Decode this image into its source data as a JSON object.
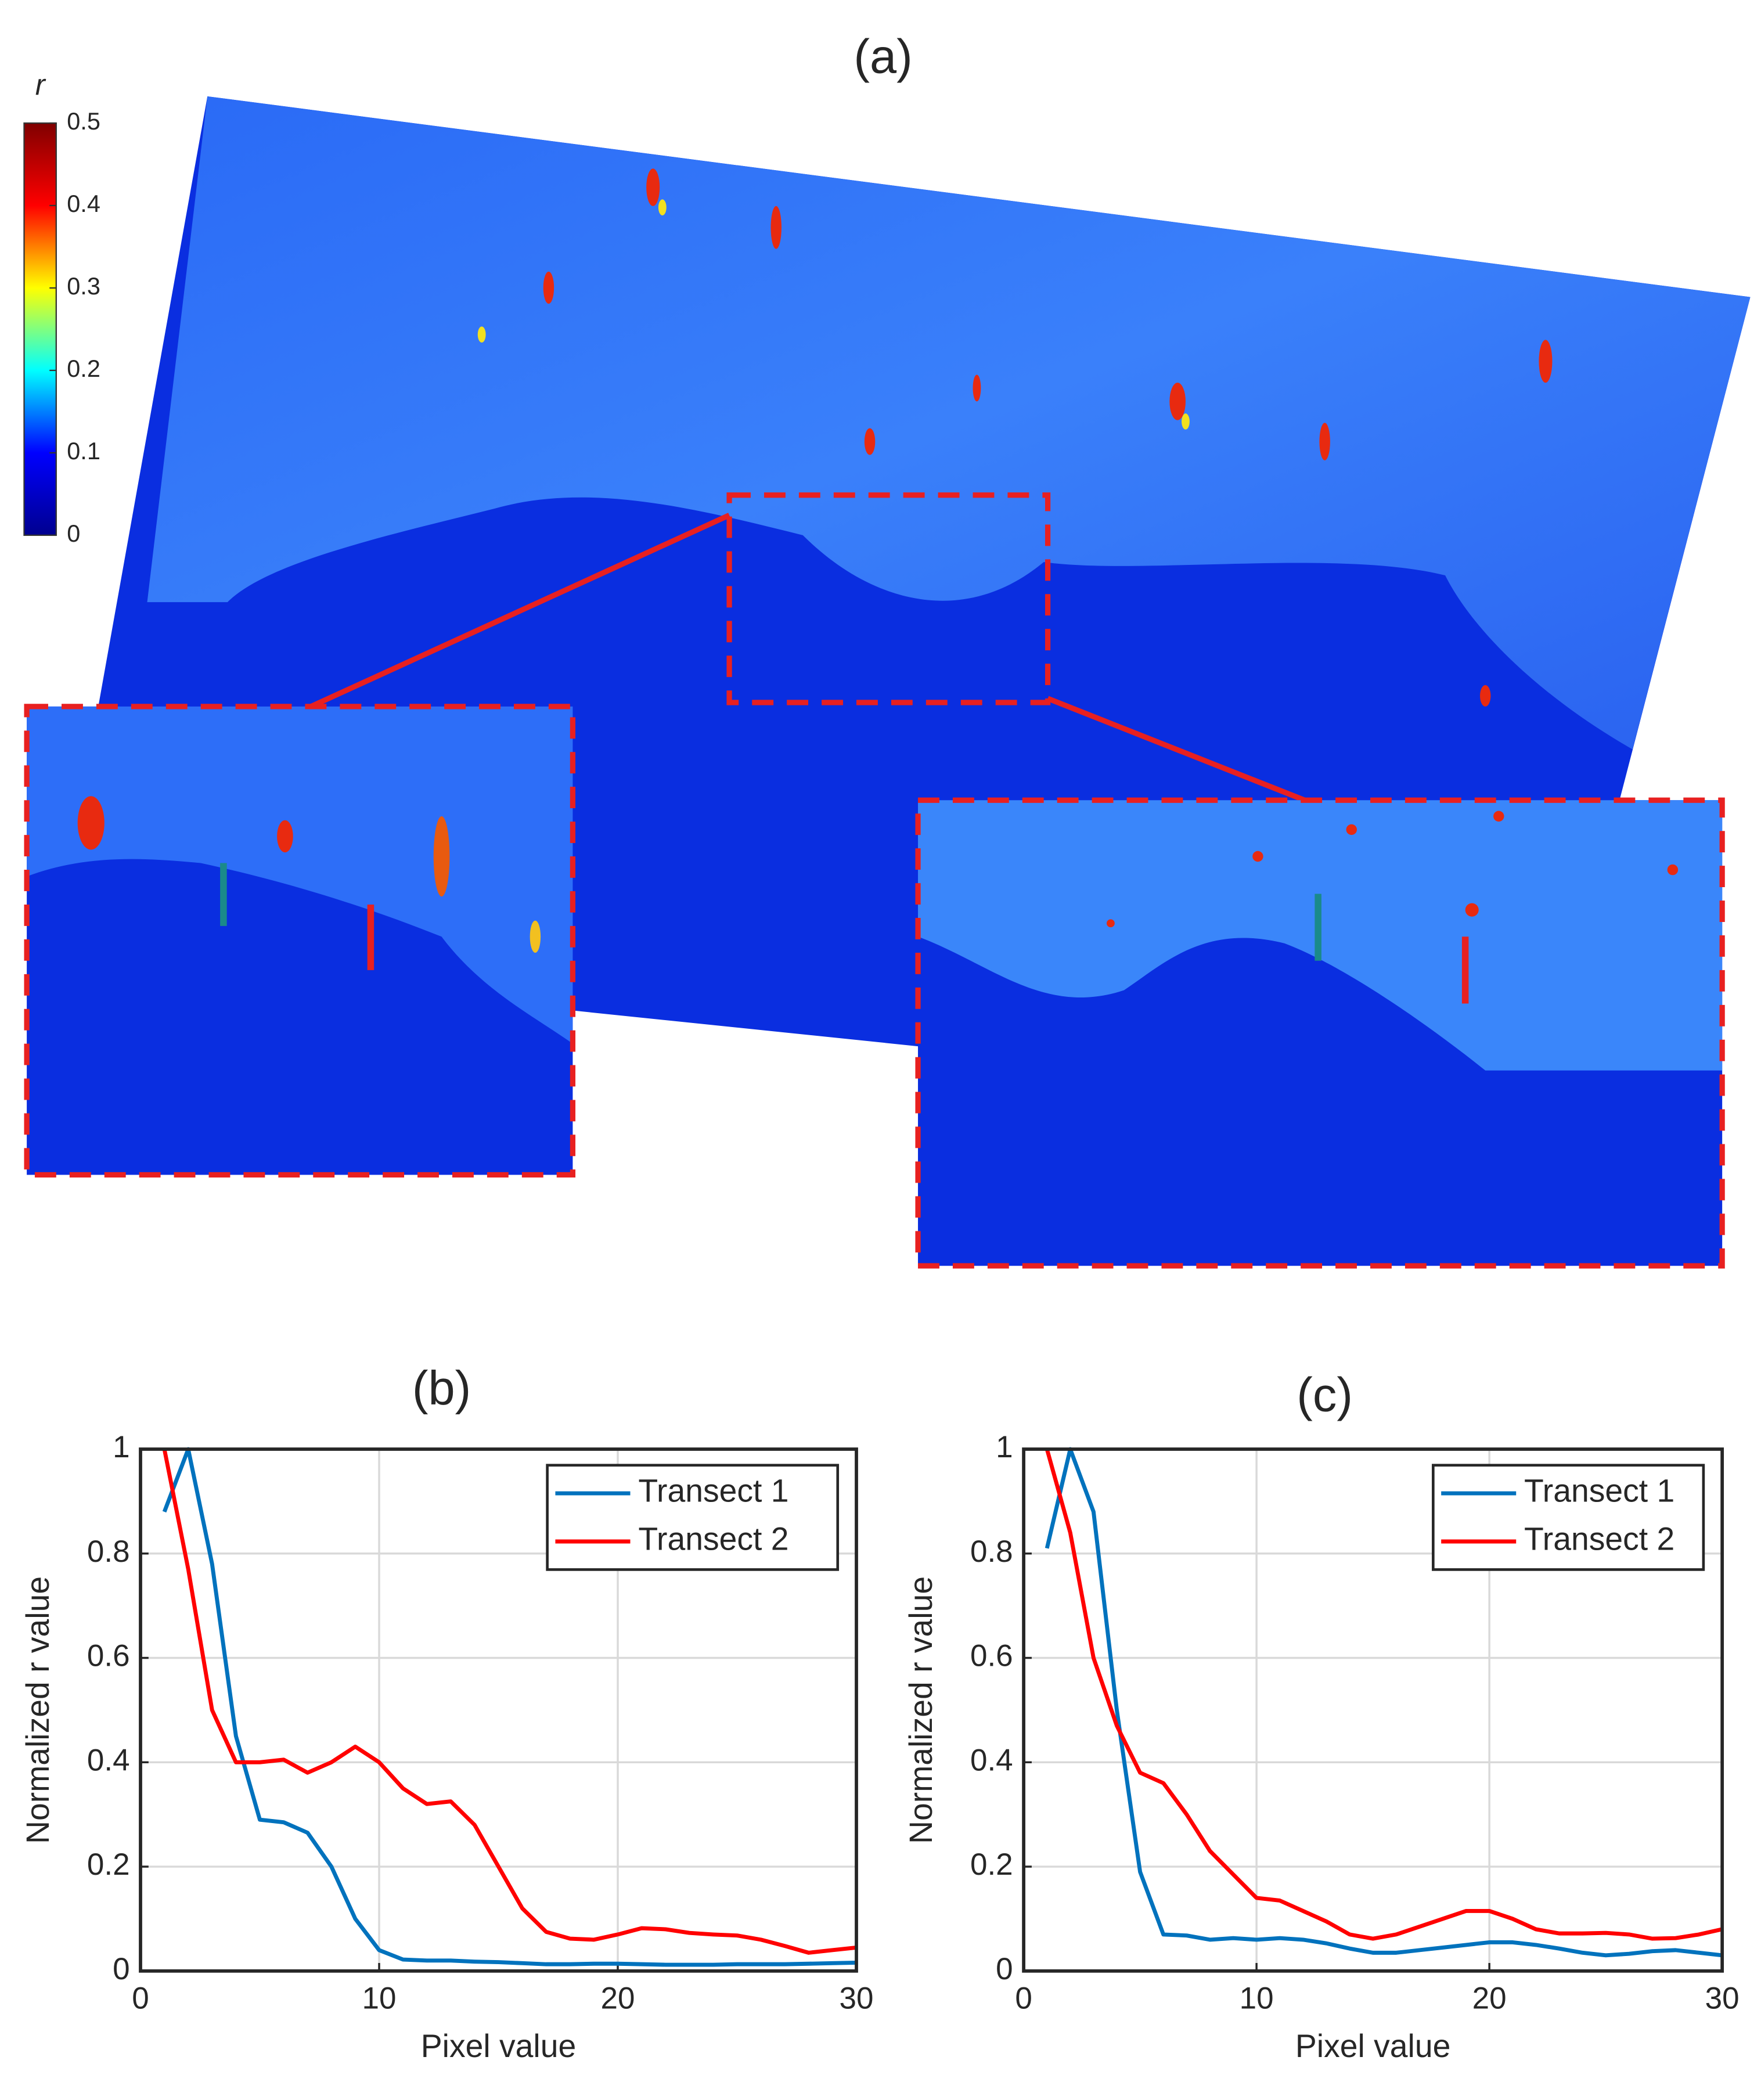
{
  "chart_data": [
    {
      "type": "image",
      "title": "(a)",
      "colorbar": {
        "label": "r",
        "lim": [
          0,
          0.5
        ],
        "ticks": [
          0,
          0.1,
          0.2,
          0.3,
          0.4,
          0.5
        ],
        "colors": [
          "#00008f",
          "#0000ff",
          "#00ffff",
          "#ffff00",
          "#ff0000",
          "#800000"
        ]
      }
    },
    {
      "type": "line",
      "title": "(b)",
      "xlabel": "Pixel value",
      "ylabel": "Normalized r value",
      "x": [
        1,
        2,
        3,
        4,
        5,
        6,
        7,
        8,
        9,
        10,
        11,
        12,
        13,
        14,
        15,
        16,
        17,
        18,
        19,
        20,
        21,
        22,
        23,
        24,
        25,
        26,
        27,
        28,
        29,
        30
      ],
      "series": [
        {
          "name": "Transect 1",
          "color": "#0072bd",
          "values": [
            0.88,
            1.0,
            0.78,
            0.45,
            0.29,
            0.285,
            0.265,
            0.2,
            0.1,
            0.04,
            0.022,
            0.02,
            0.02,
            0.018,
            0.017,
            0.015,
            0.013,
            0.013,
            0.014,
            0.014,
            0.013,
            0.012,
            0.012,
            0.012,
            0.013,
            0.013,
            0.013,
            0.014,
            0.015,
            0.016
          ]
        },
        {
          "name": "Transect 2",
          "color": "#ff0000",
          "values": [
            1.0,
            0.77,
            0.5,
            0.4,
            0.4,
            0.405,
            0.38,
            0.4,
            0.43,
            0.4,
            0.35,
            0.32,
            0.325,
            0.28,
            0.2,
            0.12,
            0.075,
            0.062,
            0.06,
            0.07,
            0.082,
            0.08,
            0.073,
            0.07,
            0.068,
            0.06,
            0.048,
            0.035,
            0.04,
            0.045
          ]
        }
      ],
      "xlim": [
        0,
        30
      ],
      "xticks": [
        0,
        10,
        20,
        30
      ],
      "ylim": [
        0,
        1
      ],
      "yticks": [
        0,
        0.2,
        0.4,
        0.6,
        0.8,
        1
      ],
      "grid": true,
      "legend": "upper right"
    },
    {
      "type": "line",
      "title": "(c)",
      "xlabel": "Pixel value",
      "ylabel": "Normalized r value",
      "x": [
        1,
        2,
        3,
        4,
        5,
        6,
        7,
        8,
        9,
        10,
        11,
        12,
        13,
        14,
        15,
        16,
        17,
        18,
        19,
        20,
        21,
        22,
        23,
        24,
        25,
        26,
        27,
        28,
        29,
        30
      ],
      "series": [
        {
          "name": "Transect 1",
          "color": "#0072bd",
          "values": [
            0.81,
            1.0,
            0.88,
            0.5,
            0.19,
            0.07,
            0.068,
            0.06,
            0.063,
            0.06,
            0.063,
            0.06,
            0.053,
            0.043,
            0.035,
            0.035,
            0.04,
            0.045,
            0.05,
            0.055,
            0.055,
            0.05,
            0.043,
            0.035,
            0.03,
            0.033,
            0.038,
            0.04,
            0.035,
            0.03
          ]
        },
        {
          "name": "Transect 2",
          "color": "#ff0000",
          "values": [
            1.0,
            0.84,
            0.6,
            0.47,
            0.38,
            0.36,
            0.3,
            0.23,
            0.185,
            0.14,
            0.135,
            0.115,
            0.095,
            0.07,
            0.062,
            0.07,
            0.085,
            0.1,
            0.115,
            0.115,
            0.1,
            0.08,
            0.072,
            0.072,
            0.073,
            0.07,
            0.062,
            0.063,
            0.07,
            0.08
          ]
        }
      ],
      "xlim": [
        0,
        30
      ],
      "xticks": [
        0,
        10,
        20,
        30
      ],
      "ylim": [
        0,
        1
      ],
      "yticks": [
        0,
        0.2,
        0.4,
        0.6,
        0.8,
        1
      ],
      "grid": true,
      "legend": "upper right"
    }
  ]
}
